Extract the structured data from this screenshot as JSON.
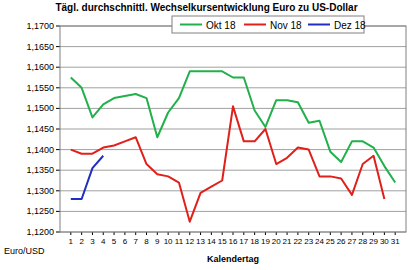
{
  "chart_data": {
    "type": "line",
    "title": "Tägl. durchschnittl. Wechselkursentwicklung Euro zu US-Dollar",
    "x_label": "Kalendertag",
    "y_label": "Euro/USD",
    "x": [
      1,
      2,
      3,
      4,
      5,
      6,
      7,
      8,
      9,
      10,
      11,
      12,
      13,
      14,
      15,
      16,
      17,
      18,
      19,
      20,
      21,
      22,
      23,
      24,
      25,
      26,
      27,
      28,
      29,
      30,
      31
    ],
    "series": [
      {
        "name": "Okt 18",
        "color": "#22b04a",
        "values": [
          1.1575,
          1.155,
          1.1478,
          1.151,
          1.1525,
          1.153,
          1.1535,
          1.1525,
          1.143,
          1.149,
          1.1525,
          1.159,
          1.159,
          1.159,
          1.159,
          1.1575,
          1.1575,
          1.1495,
          1.1455,
          1.152,
          1.152,
          1.1515,
          1.1465,
          1.147,
          1.1395,
          1.137,
          1.142,
          1.142,
          1.1405,
          1.136,
          1.132
        ]
      },
      {
        "name": "Nov 18",
        "color": "#e0201b",
        "values": [
          1.14,
          1.139,
          1.139,
          1.1405,
          1.141,
          1.142,
          1.143,
          1.1365,
          1.134,
          1.1335,
          1.132,
          1.1225,
          1.1295,
          1.131,
          1.1325,
          1.1505,
          1.142,
          1.142,
          1.145,
          1.1365,
          1.138,
          1.1405,
          1.14,
          1.1335,
          1.1335,
          1.133,
          1.129,
          1.1365,
          1.1385,
          1.128,
          null
        ]
      },
      {
        "name": "Dez 18",
        "color": "#1f2fbf",
        "values": [
          1.128,
          1.128,
          1.1355,
          1.1385,
          null,
          null,
          null,
          null,
          null,
          null,
          null,
          null,
          null,
          null,
          null,
          null,
          null,
          null,
          null,
          null,
          null,
          null,
          null,
          null,
          null,
          null,
          null,
          null,
          null,
          null,
          null
        ]
      }
    ],
    "xlim": [
      0,
      32
    ],
    "xticks": [
      1,
      2,
      3,
      4,
      5,
      6,
      7,
      8,
      9,
      10,
      11,
      12,
      13,
      14,
      15,
      16,
      17,
      18,
      19,
      20,
      21,
      22,
      23,
      24,
      25,
      26,
      27,
      28,
      29,
      30,
      31
    ],
    "ylim": [
      1.12,
      1.17
    ],
    "yticks": [
      {
        "value": 1.12,
        "label": "1,1200"
      },
      {
        "value": 1.125,
        "label": "1,1250"
      },
      {
        "value": 1.13,
        "label": "1,1300"
      },
      {
        "value": 1.135,
        "label": "1,1350"
      },
      {
        "value": 1.14,
        "label": "1,1400"
      },
      {
        "value": 1.145,
        "label": "1,1450"
      },
      {
        "value": 1.15,
        "label": "1,1500"
      },
      {
        "value": 1.155,
        "label": "1,1550"
      },
      {
        "value": 1.16,
        "label": "1,1600"
      },
      {
        "value": 1.165,
        "label": "1,1650"
      },
      {
        "value": 1.17,
        "label": "1,1700"
      }
    ],
    "grid": true,
    "legend": "top"
  }
}
